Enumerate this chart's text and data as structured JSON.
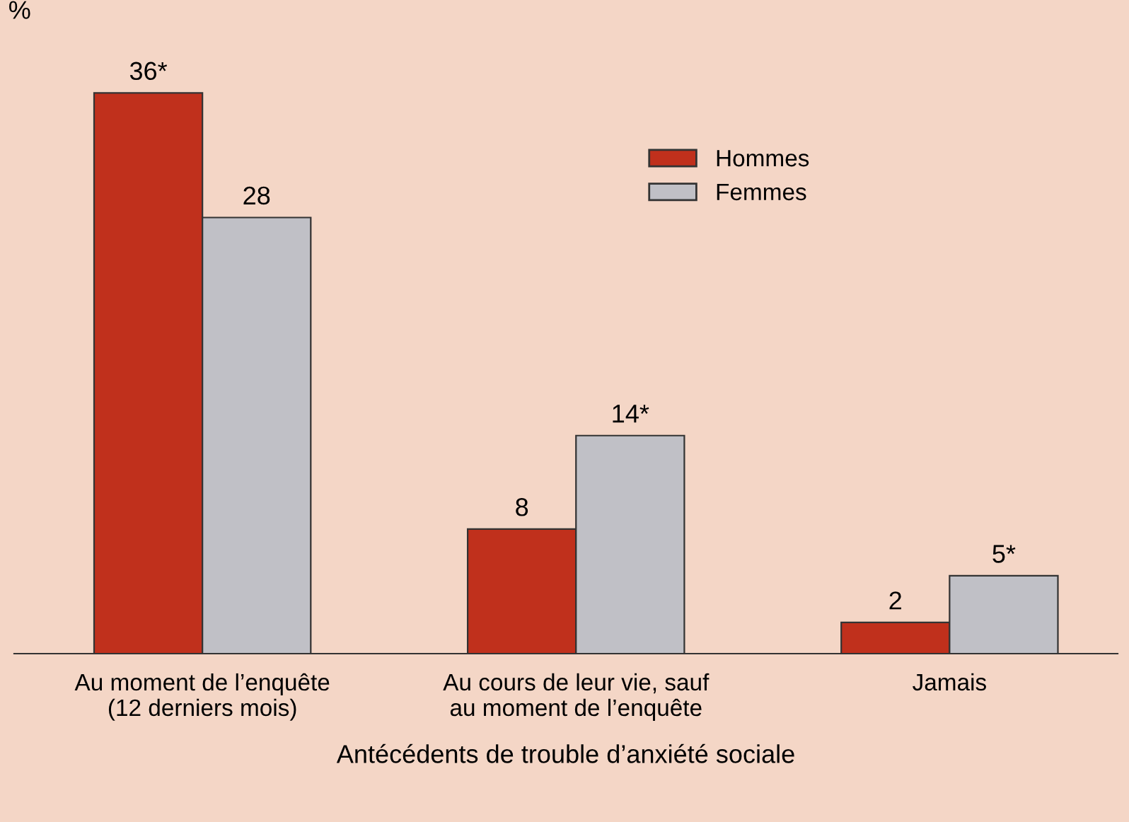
{
  "chart_data": {
    "type": "bar",
    "ylabel": "%",
    "xlabel": "Antécédents de trouble d’anxiété sociale",
    "categories": [
      "Au moment de l’enquête\n(12 derniers mois)",
      "Au cours de leur vie, sauf\nau moment de l’enquête",
      "Jamais"
    ],
    "series": [
      {
        "name": "Hommes",
        "color": "#c0301c",
        "values": [
          36,
          8,
          2
        ],
        "value_labels": [
          "36*",
          "8",
          "2"
        ]
      },
      {
        "name": "Femmes",
        "color": "#c0c0c6",
        "values": [
          28,
          14,
          5
        ],
        "value_labels": [
          "28",
          "14*",
          "5*"
        ]
      }
    ],
    "legend": "top right",
    "grid": false
  }
}
